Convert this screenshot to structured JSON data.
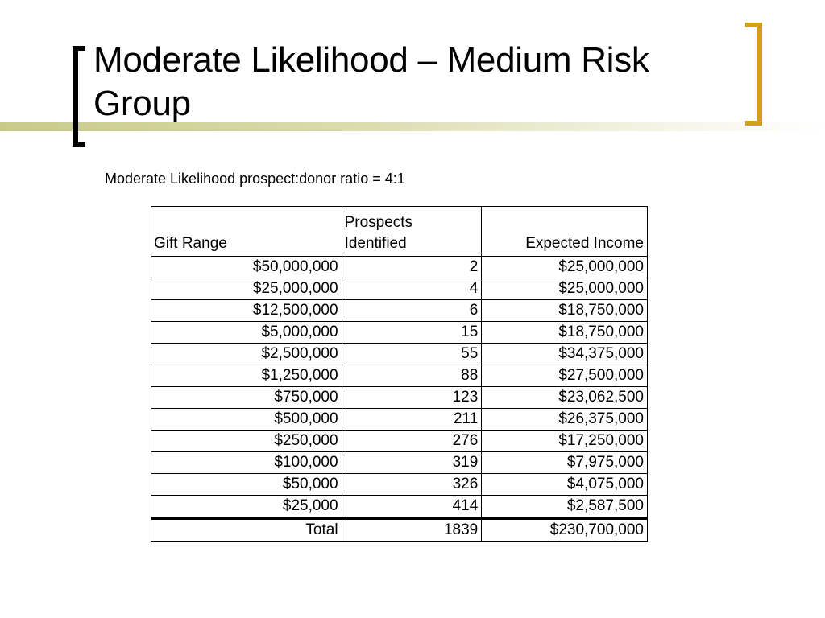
{
  "slide": {
    "title": "Moderate Likelihood – Medium Risk Group",
    "subtitle": "Moderate Likelihood prospect:donor ratio = 4:1",
    "accent_color": "#d4a017",
    "band_color": "#c9ca8a"
  },
  "table": {
    "headers": {
      "gift_range": "Gift Range",
      "prospects_line1": "Prospects",
      "prospects_line2": "Identified",
      "expected_income": "Expected Income"
    },
    "rows": [
      {
        "gift_range": "$50,000,000",
        "prospects": "2",
        "expected_income": "$25,000,000"
      },
      {
        "gift_range": "$25,000,000",
        "prospects": "4",
        "expected_income": "$25,000,000"
      },
      {
        "gift_range": "$12,500,000",
        "prospects": "6",
        "expected_income": "$18,750,000"
      },
      {
        "gift_range": "$5,000,000",
        "prospects": "15",
        "expected_income": "$18,750,000"
      },
      {
        "gift_range": "$2,500,000",
        "prospects": "55",
        "expected_income": "$34,375,000"
      },
      {
        "gift_range": "$1,250,000",
        "prospects": "88",
        "expected_income": "$27,500,000"
      },
      {
        "gift_range": "$750,000",
        "prospects": "123",
        "expected_income": "$23,062,500"
      },
      {
        "gift_range": "$500,000",
        "prospects": "211",
        "expected_income": "$26,375,000"
      },
      {
        "gift_range": "$250,000",
        "prospects": "276",
        "expected_income": "$17,250,000"
      },
      {
        "gift_range": "$100,000",
        "prospects": "319",
        "expected_income": "$7,975,000"
      },
      {
        "gift_range": "$50,000",
        "prospects": "326",
        "expected_income": "$4,075,000"
      },
      {
        "gift_range": "$25,000",
        "prospects": "414",
        "expected_income": "$2,587,500"
      }
    ],
    "total": {
      "label": "Total",
      "prospects": "1839",
      "expected_income": "$230,700,000"
    }
  }
}
